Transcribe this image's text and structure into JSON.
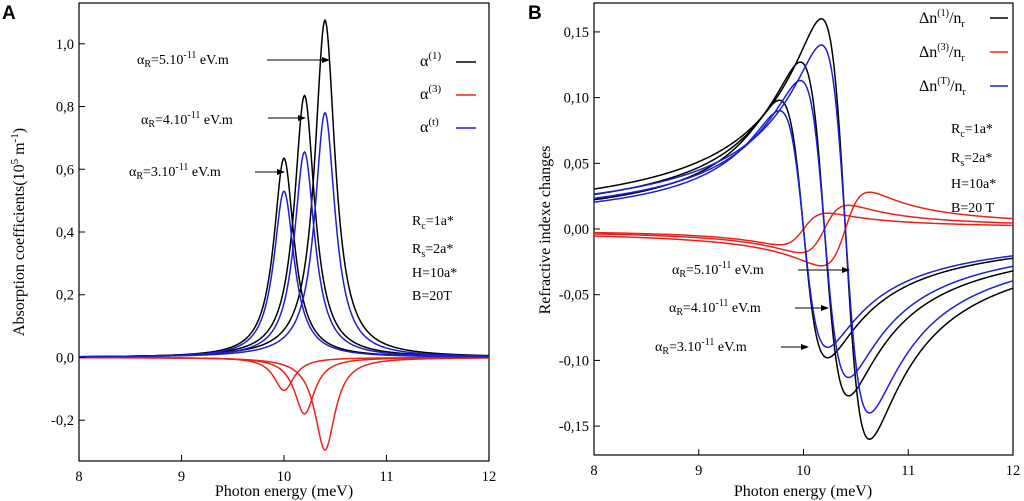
{
  "chart_data": [
    {
      "panel": "A",
      "type": "line",
      "xlabel": "Photon energy (meV)",
      "ylabel": "Absorption coefficients(10^5 m^-1)",
      "xlim": [
        8,
        12
      ],
      "ylim": [
        -0.33,
        1.13
      ],
      "xticks": [
        8,
        9,
        10,
        11,
        12
      ],
      "xtick_labels": [
        "8",
        "9",
        "10",
        "11",
        "12"
      ],
      "yticks": [
        -0.2,
        0.0,
        0.2,
        0.4,
        0.6,
        0.8,
        1.0
      ],
      "ytick_labels": [
        "-0,2",
        "0,0",
        "0,2",
        "0,4",
        "0,6",
        "0,8",
        "1,0"
      ],
      "grid": false,
      "legend_position": "top-right",
      "legend": [
        {
          "label": "α(1)",
          "color": "#000000"
        },
        {
          "label": "α(3)",
          "color": "#e8231b"
        },
        {
          "label": "α(t)",
          "color": "#1f1fd0"
        }
      ],
      "params": [
        "Rc=1a*",
        "Rs=2a*",
        "H=10a*",
        "B=20T"
      ],
      "annotations": [
        "αR=5.10-11 eV.m",
        "αR=4.10-11 eV.m",
        "αR=3.10-11 eV.m"
      ],
      "lorentz_width": 0.12,
      "series": [
        {
          "name": "α(1) αR=3.10-11",
          "color": "#000000",
          "center": 10.0,
          "peak": 0.635
        },
        {
          "name": "α(1) αR=4.10-11",
          "color": "#000000",
          "center": 10.2,
          "peak": 0.835
        },
        {
          "name": "α(1) αR=5.10-11",
          "color": "#000000",
          "center": 10.4,
          "peak": 1.075
        },
        {
          "name": "α(3) αR=3.10-11",
          "color": "#e8231b",
          "center": 10.0,
          "peak": -0.105
        },
        {
          "name": "α(3) αR=4.10-11",
          "color": "#e8231b",
          "center": 10.2,
          "peak": -0.18
        },
        {
          "name": "α(3) αR=5.10-11",
          "color": "#e8231b",
          "center": 10.4,
          "peak": -0.295
        },
        {
          "name": "α(t) αR=3.10-11",
          "color": "#1f1fd0",
          "center": 10.0,
          "peak": 0.53
        },
        {
          "name": "α(t) αR=4.10-11",
          "color": "#1f1fd0",
          "center": 10.2,
          "peak": 0.655
        },
        {
          "name": "α(t) αR=5.10-11",
          "color": "#1f1fd0",
          "center": 10.4,
          "peak": 0.78
        }
      ]
    },
    {
      "panel": "B",
      "type": "line",
      "xlabel": "Photon energy (meV)",
      "ylabel": "Refractive indexe changes",
      "xlim": [
        8,
        12
      ],
      "ylim": [
        -0.172,
        0.172
      ],
      "xticks": [
        8,
        9,
        10,
        11,
        12
      ],
      "xtick_labels": [
        "8",
        "9",
        "10",
        "11",
        "12"
      ],
      "yticks": [
        -0.15,
        -0.1,
        -0.05,
        0.0,
        0.05,
        0.1,
        0.15
      ],
      "ytick_labels": [
        "-0,15",
        "-0,10",
        "-0,05",
        "0,00",
        "0,05",
        "0,10",
        "0,15"
      ],
      "grid": false,
      "legend_position": "top-right",
      "legend": [
        {
          "label": "Δn(1)/nr",
          "color": "#000000"
        },
        {
          "label": "Δn(3)/nr",
          "color": "#e8231b"
        },
        {
          "label": "Δn(T)/nr",
          "color": "#1f1fd0"
        }
      ],
      "params": [
        "Rc=1a*",
        "Rs=2a*",
        "H=10a*",
        "B=20 T"
      ],
      "annotations": [
        "αR=5.10-11 eV.m",
        "αR=4.10-11 eV.m",
        "αR=3.10-11 eV.m"
      ],
      "lorentz_width": 0.23,
      "series": [
        {
          "name": "Δn(1)/nr αR=3.10-11",
          "color": "#000000",
          "center": 10.0,
          "amplitude": 0.098
        },
        {
          "name": "Δn(1)/nr αR=4.10-11",
          "color": "#000000",
          "center": 10.2,
          "amplitude": 0.127
        },
        {
          "name": "Δn(1)/nr αR=5.10-11",
          "color": "#000000",
          "center": 10.4,
          "amplitude": 0.16
        },
        {
          "name": "Δn(3)/nr αR=3.10-11",
          "color": "#e8231b",
          "center": 10.0,
          "amplitude": -0.012
        },
        {
          "name": "Δn(3)/nr αR=4.10-11",
          "color": "#e8231b",
          "center": 10.2,
          "amplitude": -0.018
        },
        {
          "name": "Δn(3)/nr αR=5.10-11",
          "color": "#e8231b",
          "center": 10.4,
          "amplitude": -0.028
        },
        {
          "name": "Δn(T)/nr αR=3.10-11",
          "color": "#1f1fd0",
          "center": 10.0,
          "amplitude": 0.09
        },
        {
          "name": "Δn(T)/nr αR=4.10-11",
          "color": "#1f1fd0",
          "center": 10.2,
          "amplitude": 0.113
        },
        {
          "name": "Δn(T)/nr αR=5.10-11",
          "color": "#1f1fd0",
          "center": 10.4,
          "amplitude": 0.14
        }
      ]
    }
  ]
}
